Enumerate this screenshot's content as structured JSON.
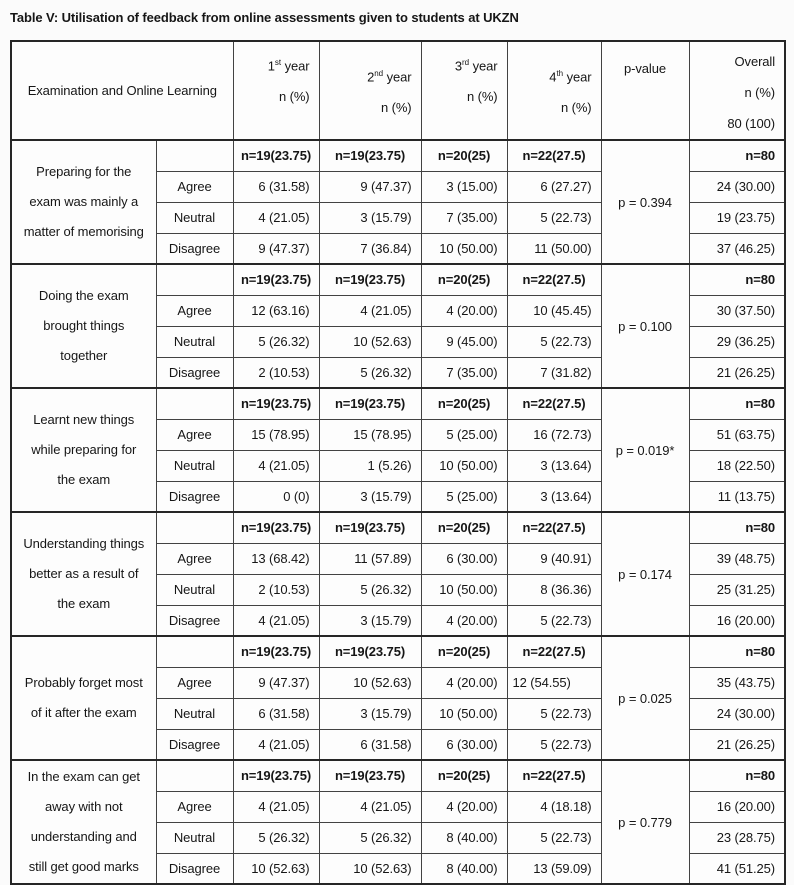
{
  "title": "Table V: Utilisation of feedback from online assessments given to students at UKZN",
  "table": {
    "header": {
      "main": "Examination and Online Learning",
      "years": [
        {
          "num": "1",
          "ord": "st",
          "word": "year",
          "line2": "n (%)"
        },
        {
          "num": "2",
          "ord": "nd",
          "word": "year",
          "line2": "n (%)"
        },
        {
          "num": "3",
          "ord": "rd",
          "word": "year",
          "line2": "n (%)"
        },
        {
          "num": "4",
          "ord": "th",
          "word": "year",
          "line2": "n (%)"
        }
      ],
      "pvalue": "p-value",
      "overall": [
        "Overall",
        "n (%)",
        "80 (100)"
      ]
    },
    "groups": [
      {
        "topic_lines": [
          "Preparing for the",
          "exam was mainly a",
          "matter of memorising"
        ],
        "n_row": [
          "n=19(23.75)",
          "n=19(23.75)",
          "n=20(25)",
          "n=22(27.5)"
        ],
        "n_overall": "n=80",
        "p": "p = 0.394",
        "rows": [
          {
            "label": "Agree",
            "values": [
              "6 (31.58)",
              "9 (47.37)",
              "3 (15.00)",
              "6 (27.27)"
            ],
            "overall": "24 (30.00)"
          },
          {
            "label": "Neutral",
            "values": [
              "4 (21.05)",
              "3 (15.79)",
              "7 (35.00)",
              "5 (22.73)"
            ],
            "overall": "19 (23.75)"
          },
          {
            "label": "Disagree",
            "values": [
              "9 (47.37)",
              "7 (36.84)",
              "10 (50.00)",
              "11 (50.00)"
            ],
            "overall": "37 (46.25)"
          }
        ]
      },
      {
        "topic_lines": [
          "Doing the exam",
          "brought things",
          "together"
        ],
        "n_row": [
          "n=19(23.75)",
          "n=19(23.75)",
          "n=20(25)",
          "n=22(27.5)"
        ],
        "n_overall": "n=80",
        "p": "p = 0.100",
        "rows": [
          {
            "label": "Agree",
            "values": [
              "12 (63.16)",
              "4 (21.05)",
              "4 (20.00)",
              "10 (45.45)"
            ],
            "overall": "30 (37.50)"
          },
          {
            "label": "Neutral",
            "values": [
              "5 (26.32)",
              "10 (52.63)",
              "9 (45.00)",
              "5 (22.73)"
            ],
            "overall": "29 (36.25)"
          },
          {
            "label": "Disagree",
            "values": [
              "2 (10.53)",
              "5 (26.32)",
              "7 (35.00)",
              "7 (31.82)"
            ],
            "overall": "21 (26.25)"
          }
        ]
      },
      {
        "topic_lines": [
          "Learnt new things",
          "while preparing for",
          "the exam"
        ],
        "n_row": [
          "n=19(23.75)",
          "n=19(23.75)",
          "n=20(25)",
          "n=22(27.5)"
        ],
        "n_overall": "n=80",
        "p": "p = 0.019*",
        "rows": [
          {
            "label": "Agree",
            "values": [
              "15 (78.95)",
              "15 (78.95)",
              "5 (25.00)",
              "16 (72.73)"
            ],
            "overall": "51 (63.75)"
          },
          {
            "label": "Neutral",
            "values": [
              "4 (21.05)",
              "1 (5.26)",
              "10 (50.00)",
              "3 (13.64)"
            ],
            "overall": "18 (22.50)"
          },
          {
            "label": "Disagree",
            "values": [
              "0 (0)",
              "3 (15.79)",
              "5 (25.00)",
              "3 (13.64)"
            ],
            "overall": "11 (13.75)"
          }
        ]
      },
      {
        "topic_lines": [
          "Understanding things",
          "better as a result of",
          "the exam"
        ],
        "n_row": [
          "n=19(23.75)",
          "n=19(23.75)",
          "n=20(25)",
          "n=22(27.5)"
        ],
        "n_overall": "n=80",
        "p": "p = 0.174",
        "rows": [
          {
            "label": "Agree",
            "values": [
              "13 (68.42)",
              "11 (57.89)",
              "6 (30.00)",
              "9 (40.91)"
            ],
            "overall": "39 (48.75)"
          },
          {
            "label": "Neutral",
            "values": [
              "2 (10.53)",
              "5 (26.32)",
              "10 (50.00)",
              "8 (36.36)"
            ],
            "overall": "25 (31.25)"
          },
          {
            "label": "Disagree",
            "values": [
              "4 (21.05)",
              "3 (15.79)",
              "4 (20.00)",
              "5 (22.73)"
            ],
            "overall": "16 (20.00)"
          }
        ]
      },
      {
        "topic_lines": [
          "Probably forget most",
          "of it after the exam"
        ],
        "n_row": [
          "n=19(23.75)",
          "n=19(23.75)",
          "n=20(25)",
          "n=22(27.5)"
        ],
        "n_overall": "n=80",
        "p": "p = 0.025",
        "rows": [
          {
            "label": "Agree",
            "values": [
              "9 (47.37)",
              "10 (52.63)",
              "4 (20.00)",
              "12 (54.55)"
            ],
            "overall": "35 (43.75)"
          },
          {
            "label": "Neutral",
            "values": [
              "6 (31.58)",
              "3 (15.79)",
              "10 (50.00)",
              "5 (22.73)"
            ],
            "overall": "24 (30.00)"
          },
          {
            "label": "Disagree",
            "values": [
              "4 (21.05)",
              "6 (31.58)",
              "6 (30.00)",
              "5 (22.73)"
            ],
            "overall": "21 (26.25)"
          }
        ]
      },
      {
        "topic_lines": [
          "In the exam can get",
          "away with not",
          "understanding and",
          "still get good marks"
        ],
        "n_row": [
          "n=19(23.75)",
          "n=19(23.75)",
          "n=20(25)",
          "n=22(27.5)"
        ],
        "n_overall": "n=80",
        "p": "p = 0.779",
        "rows": [
          {
            "label": "Agree",
            "values": [
              "4 (21.05)",
              "4 (21.05)",
              "4 (20.00)",
              "4 (18.18)"
            ],
            "overall": "16 (20.00)"
          },
          {
            "label": "Neutral",
            "values": [
              "5 (26.32)",
              "5 (26.32)",
              "8 (40.00)",
              "5 (22.73)"
            ],
            "overall": "23 (28.75)"
          },
          {
            "label": "Disagree",
            "values": [
              "10 (52.63)",
              "10 (52.63)",
              "8 (40.00)",
              "13 (59.09)"
            ],
            "overall": "41 (51.25)"
          }
        ]
      }
    ]
  }
}
